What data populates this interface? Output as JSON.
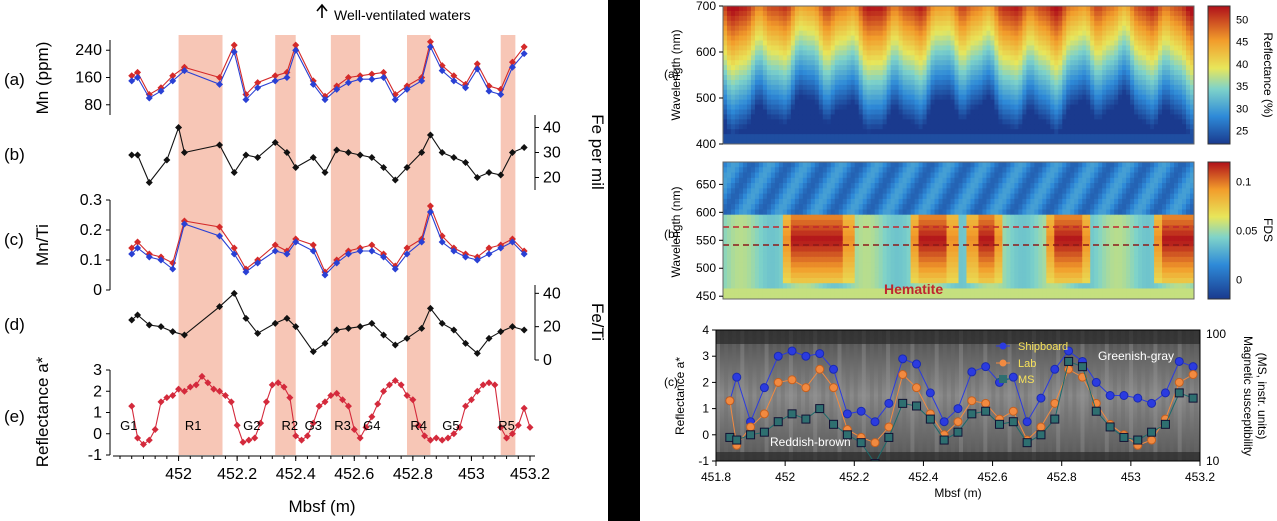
{
  "left": {
    "annotation": "Well-ventilated waters",
    "xlabel": "Mbsf (m)",
    "xticks": [
      "452",
      "452.2",
      "452.4",
      "452.6",
      "452.8",
      "453",
      "453.2"
    ],
    "panel_labels": [
      "(a)",
      "(b)",
      "(c)",
      "(d)",
      "(e)"
    ],
    "ylabels": {
      "a": "Mn (ppm)",
      "b": "Fe per mil",
      "c": "Mn/Ti",
      "d": "Fe/Ti",
      "e": "Reflectance a*"
    },
    "yticks": {
      "a": [
        "80",
        "160",
        "240"
      ],
      "b": [
        "20",
        "30",
        "40"
      ],
      "c": [
        "0",
        "0.1",
        "0.2",
        "0.3"
      ],
      "d": [
        "0",
        "20",
        "40"
      ],
      "e": [
        "-1",
        "0",
        "1",
        "2",
        "3"
      ]
    },
    "zone_labels": [
      "G1",
      "R1",
      "G2",
      "R2",
      "G3",
      "R3",
      "G4",
      "R4",
      "G5",
      "R5"
    ],
    "colors": {
      "red": "#d42a2a",
      "blue": "#2a40d4",
      "black": "#111111",
      "band": "#f7c6b6",
      "reflectance": "#d42a3c"
    }
  },
  "right": {
    "panel_labels": [
      "(a)",
      "(b)",
      "(c)"
    ],
    "ylabels": {
      "a": "Wavelength (nm)",
      "b": "Wavelength (nm)",
      "c": "Reflectance a*"
    },
    "yticks": {
      "a": [
        "400",
        "500",
        "600",
        "700"
      ],
      "b": [
        "450",
        "500",
        "550",
        "600",
        "650"
      ],
      "c": [
        "-1",
        "0",
        "1",
        "2",
        "3",
        "4"
      ]
    },
    "cbar_a": {
      "label": "Reflectance (%)",
      "ticks": [
        "25",
        "30",
        "35",
        "40",
        "45",
        "50"
      ]
    },
    "cbar_b": {
      "label": "FDS",
      "ticks": [
        "0",
        "0.05",
        "0.1"
      ]
    },
    "c_right": {
      "label": "Magnetic susceptibility (MS, instr. units)",
      "ticks": [
        "10",
        "100"
      ]
    },
    "hematite": "Hematite",
    "legend": [
      "Shipboard",
      "Lab",
      "MS"
    ],
    "text_reddish": "Reddish-brown",
    "text_greenish": "Greenish-gray",
    "xticks": [
      "451.8",
      "452",
      "452.2",
      "452.4",
      "452.6",
      "452.8",
      "453",
      "453.2"
    ],
    "xlabel": "Mbsf (m)"
  },
  "chart_data": [
    {
      "type": "line",
      "panel": "left (a)",
      "ylabel": "Mn (ppm)",
      "ylim": [
        50,
        270
      ],
      "series": [
        {
          "values_x": [
            451.84,
            451.86,
            451.9,
            451.94,
            451.98,
            452.02,
            452.14,
            452.19,
            452.23,
            452.27,
            452.33,
            452.37,
            452.4,
            452.46,
            452.5,
            452.54,
            452.58,
            452.62,
            452.66,
            452.7,
            452.74,
            452.78,
            452.83,
            452.86,
            452.9,
            452.94,
            452.98,
            453.02,
            453.06,
            453.1,
            453.14,
            453.18
          ],
          "values": [
            165,
            175,
            110,
            130,
            165,
            190,
            160,
            255,
            110,
            145,
            165,
            175,
            255,
            150,
            105,
            135,
            160,
            165,
            170,
            175,
            110,
            135,
            160,
            265,
            195,
            165,
            140,
            200,
            135,
            125,
            205,
            250
          ]
        },
        {
          "values_x": [
            451.84,
            451.86,
            451.9,
            451.94,
            451.98,
            452.02,
            452.14,
            452.19,
            452.23,
            452.27,
            452.33,
            452.37,
            452.4,
            452.46,
            452.5,
            452.54,
            452.58,
            452.62,
            452.66,
            452.7,
            452.74,
            452.78,
            452.83,
            452.86,
            452.9,
            452.94,
            452.98,
            453.02,
            453.06,
            453.1,
            453.14,
            453.18
          ],
          "values": [
            150,
            160,
            100,
            120,
            150,
            180,
            140,
            235,
            95,
            130,
            150,
            160,
            240,
            140,
            95,
            125,
            145,
            155,
            155,
            160,
            95,
            125,
            150,
            250,
            180,
            150,
            130,
            185,
            120,
            110,
            190,
            230
          ]
        }
      ]
    },
    {
      "type": "line",
      "panel": "left (b)",
      "ylabel": "Fe per mil",
      "ylim": [
        15,
        45
      ],
      "x": [
        451.84,
        451.86,
        451.9,
        451.96,
        452.0,
        452.02,
        452.14,
        452.19,
        452.23,
        452.27,
        452.33,
        452.37,
        452.4,
        452.46,
        452.5,
        452.54,
        452.58,
        452.62,
        452.66,
        452.7,
        452.74,
        452.78,
        452.83,
        452.86,
        452.9,
        452.94,
        452.98,
        453.02,
        453.06,
        453.1,
        453.14,
        453.18
      ],
      "values": [
        29,
        29,
        18,
        27,
        40,
        30,
        33,
        22,
        29,
        28,
        34,
        30,
        24,
        28,
        22,
        31,
        30,
        29,
        28,
        24,
        19,
        24,
        30,
        37,
        30,
        28,
        26,
        20,
        22,
        21,
        30,
        32
      ]
    },
    {
      "type": "line",
      "panel": "left (c)",
      "ylabel": "Mn/Ti",
      "ylim": [
        0,
        0.3
      ],
      "series": [
        {
          "values_x": [
            451.84,
            451.86,
            451.9,
            451.94,
            451.98,
            452.02,
            452.14,
            452.19,
            452.23,
            452.27,
            452.33,
            452.37,
            452.4,
            452.46,
            452.5,
            452.54,
            452.58,
            452.62,
            452.66,
            452.7,
            452.74,
            452.78,
            452.83,
            452.86,
            452.9,
            452.94,
            452.98,
            453.02,
            453.06,
            453.1,
            453.14,
            453.18
          ],
          "values": [
            0.14,
            0.16,
            0.12,
            0.11,
            0.09,
            0.23,
            0.21,
            0.14,
            0.07,
            0.1,
            0.15,
            0.13,
            0.17,
            0.15,
            0.06,
            0.1,
            0.13,
            0.14,
            0.15,
            0.12,
            0.08,
            0.14,
            0.17,
            0.28,
            0.18,
            0.14,
            0.12,
            0.11,
            0.14,
            0.15,
            0.17,
            0.13
          ]
        },
        {
          "values_x": [
            451.84,
            451.86,
            451.9,
            451.94,
            451.98,
            452.02,
            452.14,
            452.19,
            452.23,
            452.27,
            452.33,
            452.37,
            452.4,
            452.46,
            452.5,
            452.54,
            452.58,
            452.62,
            452.66,
            452.7,
            452.74,
            452.78,
            452.83,
            452.86,
            452.9,
            452.94,
            452.98,
            453.02,
            453.06,
            453.1,
            453.14,
            453.18
          ],
          "values": [
            0.12,
            0.14,
            0.11,
            0.1,
            0.07,
            0.22,
            0.18,
            0.12,
            0.06,
            0.09,
            0.13,
            0.12,
            0.16,
            0.13,
            0.05,
            0.09,
            0.12,
            0.13,
            0.13,
            0.11,
            0.07,
            0.12,
            0.16,
            0.26,
            0.16,
            0.13,
            0.11,
            0.1,
            0.12,
            0.14,
            0.16,
            0.12
          ]
        }
      ]
    },
    {
      "type": "line",
      "panel": "left (d)",
      "ylabel": "Fe/Ti",
      "ylim": [
        0,
        45
      ],
      "x": [
        451.84,
        451.86,
        451.9,
        451.94,
        451.98,
        452.02,
        452.14,
        452.19,
        452.23,
        452.27,
        452.33,
        452.37,
        452.4,
        452.46,
        452.5,
        452.54,
        452.58,
        452.62,
        452.66,
        452.7,
        452.74,
        452.78,
        452.83,
        452.86,
        452.9,
        452.94,
        452.98,
        453.02,
        453.06,
        453.1,
        453.14,
        453.18
      ],
      "values": [
        24,
        27,
        21,
        20,
        17,
        15,
        32,
        40,
        25,
        16,
        22,
        25,
        20,
        5,
        10,
        18,
        19,
        20,
        22,
        15,
        9,
        13,
        19,
        31,
        22,
        18,
        10,
        4,
        13,
        17,
        20,
        18
      ]
    },
    {
      "type": "line",
      "panel": "left (e)",
      "ylabel": "Reflectance a*",
      "ylim": [
        -1,
        3
      ],
      "x": [
        451.84,
        451.86,
        451.88,
        451.9,
        451.92,
        451.94,
        451.96,
        451.98,
        452.0,
        452.02,
        452.04,
        452.06,
        452.08,
        452.1,
        452.12,
        452.14,
        452.16,
        452.18,
        452.2,
        452.22,
        452.24,
        452.26,
        452.28,
        452.3,
        452.32,
        452.34,
        452.36,
        452.38,
        452.4,
        452.42,
        452.44,
        452.46,
        452.48,
        452.5,
        452.52,
        452.54,
        452.56,
        452.58,
        452.6,
        452.62,
        452.64,
        452.66,
        452.68,
        452.7,
        452.72,
        452.74,
        452.76,
        452.78,
        452.8,
        452.82,
        452.84,
        452.86,
        452.88,
        452.9,
        452.92,
        452.94,
        452.96,
        452.98,
        453.0,
        453.02,
        453.04,
        453.06,
        453.08,
        453.1,
        453.12,
        453.14,
        453.16,
        453.18,
        453.2
      ],
      "values": [
        1.3,
        -0.2,
        -0.5,
        -0.3,
        0.2,
        1.5,
        1.7,
        1.8,
        2.1,
        2.0,
        2.2,
        2.3,
        2.7,
        2.4,
        2.1,
        2.0,
        1.8,
        1.5,
        0.4,
        -0.4,
        -0.3,
        -0.2,
        0.5,
        1.5,
        2.3,
        2.4,
        2.2,
        1.7,
        -0.1,
        -0.3,
        -0.1,
        0.5,
        1.3,
        1.5,
        1.8,
        1.9,
        1.6,
        1.3,
        0.2,
        -0.2,
        0.3,
        0.8,
        1.4,
        2.0,
        2.3,
        2.5,
        2.3,
        1.8,
        1.6,
        0.4,
        -0.1,
        -0.3,
        -0.2,
        -0.3,
        -0.2,
        0.0,
        0.3,
        1.3,
        1.6,
        2.0,
        2.3,
        2.4,
        2.3,
        0.3,
        -0.2,
        0.0,
        0.4,
        1.2,
        0.3
      ]
    },
    {
      "type": "heatmap",
      "panel": "right (a)",
      "ylabel": "Wavelength (nm)",
      "ylim": [
        400,
        700
      ],
      "xlim": [
        451.8,
        453.2
      ],
      "colorbar": {
        "label": "Reflectance (%)",
        "range": [
          22,
          53
        ]
      }
    },
    {
      "type": "heatmap",
      "panel": "right (b)",
      "ylabel": "Wavelength (nm)",
      "ylim": [
        445,
        690
      ],
      "xlim": [
        451.8,
        453.2
      ],
      "colorbar": {
        "label": "FDS",
        "range": [
          -0.02,
          0.12
        ]
      }
    },
    {
      "type": "scatter",
      "panel": "right (c)",
      "ylabel": "Reflectance a*",
      "ylim": [
        -1,
        4
      ],
      "x": [
        451.84,
        451.86,
        451.9,
        451.94,
        451.98,
        452.02,
        452.06,
        452.1,
        452.14,
        452.18,
        452.22,
        452.26,
        452.3,
        452.34,
        452.38,
        452.42,
        452.46,
        452.5,
        452.54,
        452.58,
        452.62,
        452.66,
        452.7,
        452.74,
        452.78,
        452.82,
        452.86,
        452.9,
        452.94,
        452.98,
        453.02,
        453.06,
        453.1,
        453.14,
        453.18
      ],
      "series": [
        {
          "name": "Shipboard",
          "values": [
            1.3,
            2.2,
            0.5,
            1.8,
            3.0,
            3.2,
            3.0,
            3.1,
            2.5,
            0.8,
            0.9,
            0.5,
            1.2,
            2.9,
            2.7,
            1.6,
            0.5,
            1.0,
            2.4,
            2.6,
            2.0,
            2.2,
            0.5,
            1.4,
            2.5,
            3.2,
            2.8,
            2.0,
            1.5,
            1.5,
            1.4,
            1.2,
            1.6,
            2.8,
            2.6
          ]
        },
        {
          "name": "Lab",
          "values": [
            1.3,
            -0.4,
            0.3,
            0.8,
            2.0,
            2.1,
            1.8,
            2.5,
            1.8,
            0.2,
            -0.1,
            -0.3,
            0.3,
            2.3,
            1.8,
            0.8,
            0.0,
            0.5,
            1.3,
            1.2,
            0.6,
            0.9,
            -0.2,
            0.3,
            1.2,
            2.5,
            2.2,
            1.2,
            0.4,
            0.0,
            -0.4,
            -0.2,
            0.6,
            2.0,
            2.3
          ]
        },
        {
          "name": "MS",
          "values": [
            -0.1,
            -0.2,
            0.0,
            0.1,
            0.5,
            0.8,
            0.6,
            1.0,
            0.4,
            0.0,
            -0.3,
            -1.1,
            -0.1,
            1.2,
            1.1,
            0.6,
            -0.2,
            0.1,
            0.8,
            0.9,
            0.4,
            0.5,
            -0.3,
            0.0,
            0.6,
            2.8,
            2.6,
            0.9,
            0.3,
            -0.1,
            -0.2,
            0.1,
            0.4,
            1.6,
            1.4
          ]
        }
      ]
    }
  ]
}
